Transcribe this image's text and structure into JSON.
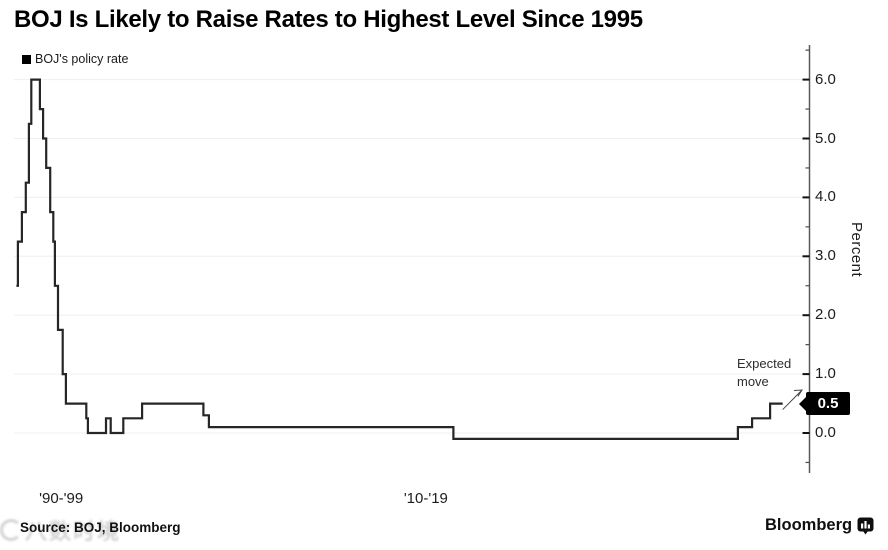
{
  "title": "BOJ Is Likely to Raise Rates to Highest Level Since 1995",
  "legend": {
    "label": "BOJ's policy rate",
    "swatch_color": "#000000"
  },
  "chart_data": {
    "type": "line",
    "subtype": "step",
    "title": "BOJ Is Likely to Raise Rates to Highest Level Since 1995",
    "ylabel": "Percent",
    "axis_side": "right",
    "grid": "horizontal-light",
    "ylim": [
      -0.7,
      6.6
    ],
    "y_ticks": [
      0,
      1,
      2,
      3,
      4,
      5,
      6
    ],
    "y_minor_tick_step": 0.5,
    "x_tick_labels": [
      {
        "label": "'90-'99",
        "fx": 0.06
      },
      {
        "label": "'10-'19",
        "fx": 0.524
      }
    ],
    "series": [
      {
        "name": "BOJ's policy rate",
        "color": "#262626",
        "points_fx_value": [
          [
            0.003,
            2.5
          ],
          [
            0.005,
            3.25
          ],
          [
            0.01,
            3.75
          ],
          [
            0.015,
            4.25
          ],
          [
            0.019,
            5.25
          ],
          [
            0.022,
            6.0
          ],
          [
            0.033,
            5.5
          ],
          [
            0.037,
            5.0
          ],
          [
            0.041,
            4.5
          ],
          [
            0.046,
            3.75
          ],
          [
            0.05,
            3.25
          ],
          [
            0.052,
            2.5
          ],
          [
            0.056,
            1.75
          ],
          [
            0.062,
            1.0
          ],
          [
            0.066,
            0.5
          ],
          [
            0.092,
            0.25
          ],
          [
            0.094,
            0.0
          ],
          [
            0.117,
            0.25
          ],
          [
            0.123,
            0.0
          ],
          [
            0.139,
            0.25
          ],
          [
            0.163,
            0.5
          ],
          [
            0.241,
            0.3
          ],
          [
            0.248,
            0.1
          ],
          [
            0.559,
            -0.1
          ],
          [
            0.921,
            0.1
          ],
          [
            0.939,
            0.25
          ],
          [
            0.962,
            0.5
          ]
        ],
        "end_fx": 0.978
      }
    ],
    "annotation": {
      "lines": "Expected\nmove",
      "arrow_to_value": 0.5
    },
    "end_badge": {
      "label": "0.5",
      "value": 0.5,
      "bg": "#000000",
      "fg": "#ffffff"
    }
  },
  "footer": {
    "source": "Source: BOJ, Bloomberg",
    "brand": "Bloomberg"
  },
  "watermark": {
    "text": "八数时境"
  }
}
